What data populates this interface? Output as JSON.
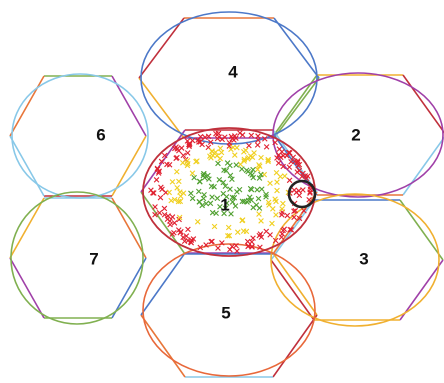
{
  "cells": [
    {
      "id": "cell-1",
      "label": "1",
      "circle_color": "#c0303c"
    },
    {
      "id": "cell-2",
      "label": "2",
      "circle_color": "#a040a8"
    },
    {
      "id": "cell-3",
      "label": "3",
      "circle_color": "#f0b030"
    },
    {
      "id": "cell-4",
      "label": "4",
      "circle_color": "#4c78c8"
    },
    {
      "id": "cell-5",
      "label": "5",
      "circle_color": "#e8683a"
    },
    {
      "id": "cell-6",
      "label": "6",
      "circle_color": "#88c8e8"
    },
    {
      "id": "cell-7",
      "label": "7",
      "circle_color": "#80b050"
    }
  ],
  "hexagon_edge_colors": [
    "#e8763a",
    "#4c78c8",
    "#80b050",
    "#a040a8",
    "#f0b030",
    "#c0303c",
    "#88c8e8"
  ],
  "marker_colors": {
    "outer": "#e02030",
    "middle": "#f0d020",
    "inner": "#50a030"
  },
  "highlight_ring_color": "#222222"
}
